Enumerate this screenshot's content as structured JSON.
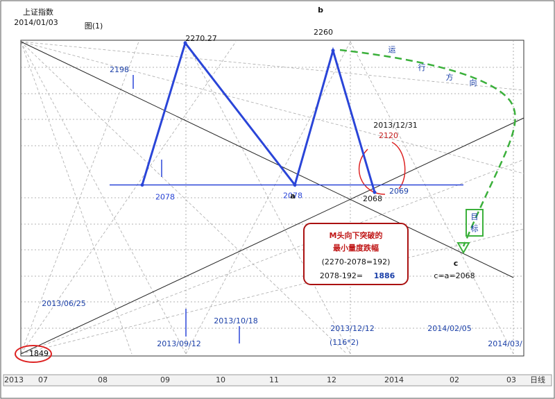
{
  "chart_data": {
    "type": "line",
    "color": "#2a45d8",
    "values": [
      2078,
      2270.27,
      2078,
      2260,
      2068
    ],
    "ylim": [
      1849,
      2270.27
    ]
  },
  "time_axis": [
    "2013",
    "07",
    "08",
    "09",
    "10",
    "11",
    "12",
    "2014",
    "02",
    "03",
    "日线"
  ],
  "annotations": [
    "上证指数",
    "2014/01/03",
    "图(1)",
    "b",
    "2198",
    "2013/12/31",
    "2120",
    "2069",
    "a",
    "运",
    "行",
    "方",
    "向",
    "目",
    "标",
    "c",
    "c=a=2068",
    "2013/06/25",
    "2013/10/18",
    "2013/09/12",
    "2013/12/12",
    "(116*2)",
    "2014/02/05",
    "2014/03/",
    "M头向下突破的",
    "最小量度跌幅",
    "(2270-2078=192)",
    "2078-192=",
    "1886"
  ]
}
